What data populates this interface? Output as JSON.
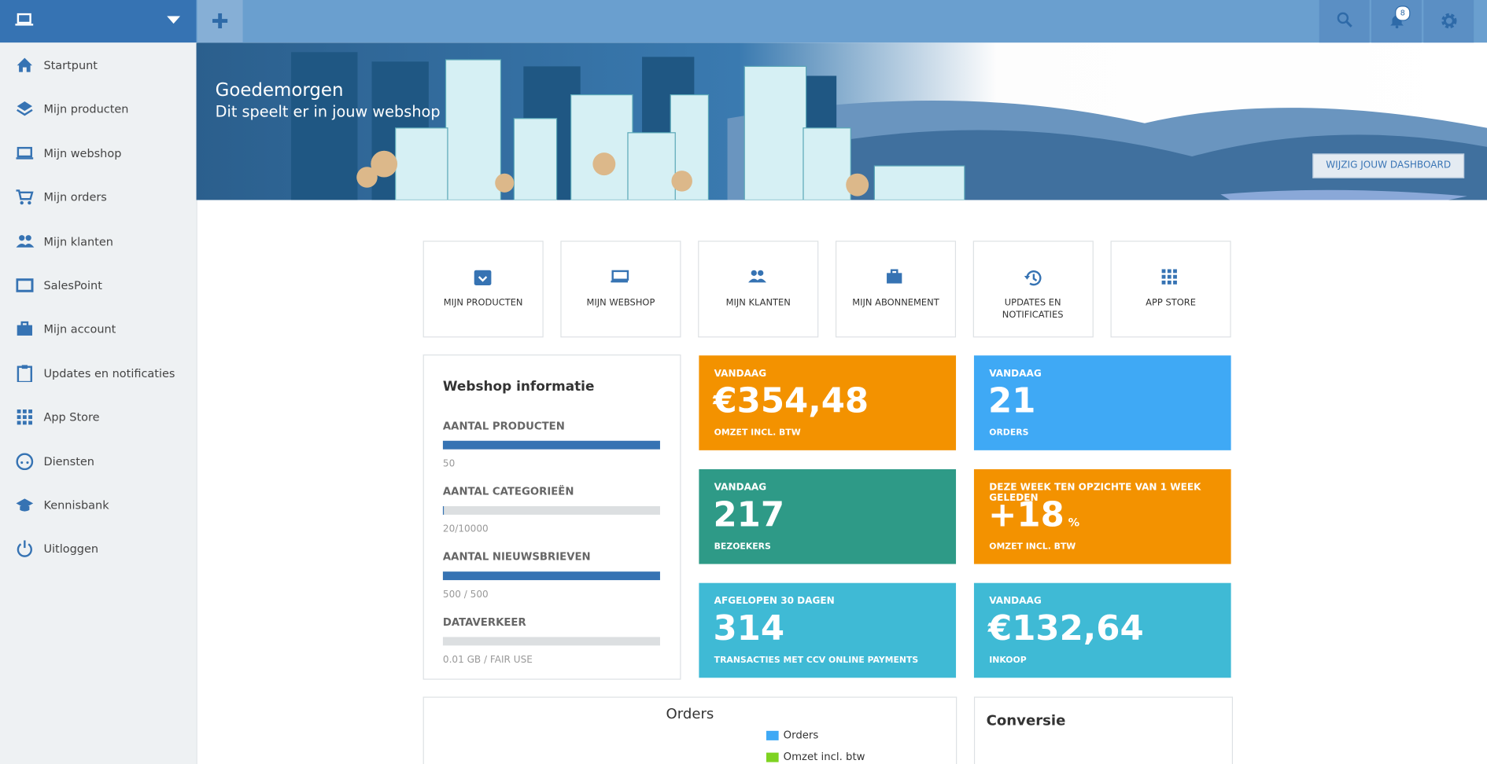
{
  "sidebar": {
    "items": [
      "Startpunt",
      "Mijn producten",
      "Mijn webshop",
      "Mijn orders",
      "Mijn klanten",
      "SalesPoint",
      "Mijn account",
      "Updates en notificaties",
      "App Store",
      "Diensten",
      "Kennisbank",
      "Uitloggen"
    ]
  },
  "topbar": {
    "notification_count": "8"
  },
  "banner": {
    "title": "Goedemorgen",
    "subtitle": "Dit speelt er in jouw webshop",
    "button": "WIJZIG JOUW DASHBOARD"
  },
  "tiles": [
    "MIJN PRODUCTEN",
    "MIJN WEBSHOP",
    "MIJN KLANTEN",
    "MIJN ABONNEMENT",
    "UPDATES EN NOTIFICATIES",
    "APP STORE"
  ],
  "webshop_info": {
    "title": "Webshop informatie",
    "items": [
      {
        "label": "AANTAL PRODUCTEN",
        "value": "50",
        "fill_percent": 100
      },
      {
        "label": "AANTAL CATEGORIEËN",
        "value": "20/10000",
        "fill_percent": 0.2
      },
      {
        "label": "AANTAL NIEUWSBRIEVEN",
        "value": "500 / 500",
        "fill_percent": 100
      },
      {
        "label": "DATAVERKEER",
        "value": "0.01 GB / FAIR USE",
        "fill_percent": 0
      }
    ]
  },
  "cards": [
    {
      "label": "VANDAAG",
      "value": "€354,48",
      "caption": "OMZET INCL. BTW",
      "color": "#f39200"
    },
    {
      "label": "VANDAAG",
      "value": "21",
      "caption": "ORDERS",
      "color": "#3fa9f5"
    },
    {
      "label": "VANDAAG",
      "value": "217",
      "caption": "BEZOEKERS",
      "color": "#2e9a87"
    },
    {
      "label": "DEZE WEEK TEN OPZICHTE VAN 1 WEEK GELEDEN",
      "value": "+18",
      "unit": "%",
      "caption": "OMZET INCL. BTW",
      "color": "#f39200"
    },
    {
      "label": "AFGELOPEN 30 DAGEN",
      "value": "314",
      "caption": "TRANSACTIES MET CCV ONLINE PAYMENTS",
      "color": "#3fbad5"
    },
    {
      "label": "VANDAAG",
      "value": "€132,64",
      "caption": "INKOOP",
      "color": "#3fbad5"
    }
  ],
  "orders_panel": {
    "title": "Orders",
    "legend": [
      {
        "name": "Orders",
        "color": "#3fa9f5"
      },
      {
        "name": "Omzet incl. btw",
        "color": "#7ed321"
      }
    ]
  },
  "conversie_panel": {
    "title": "Conversie"
  }
}
